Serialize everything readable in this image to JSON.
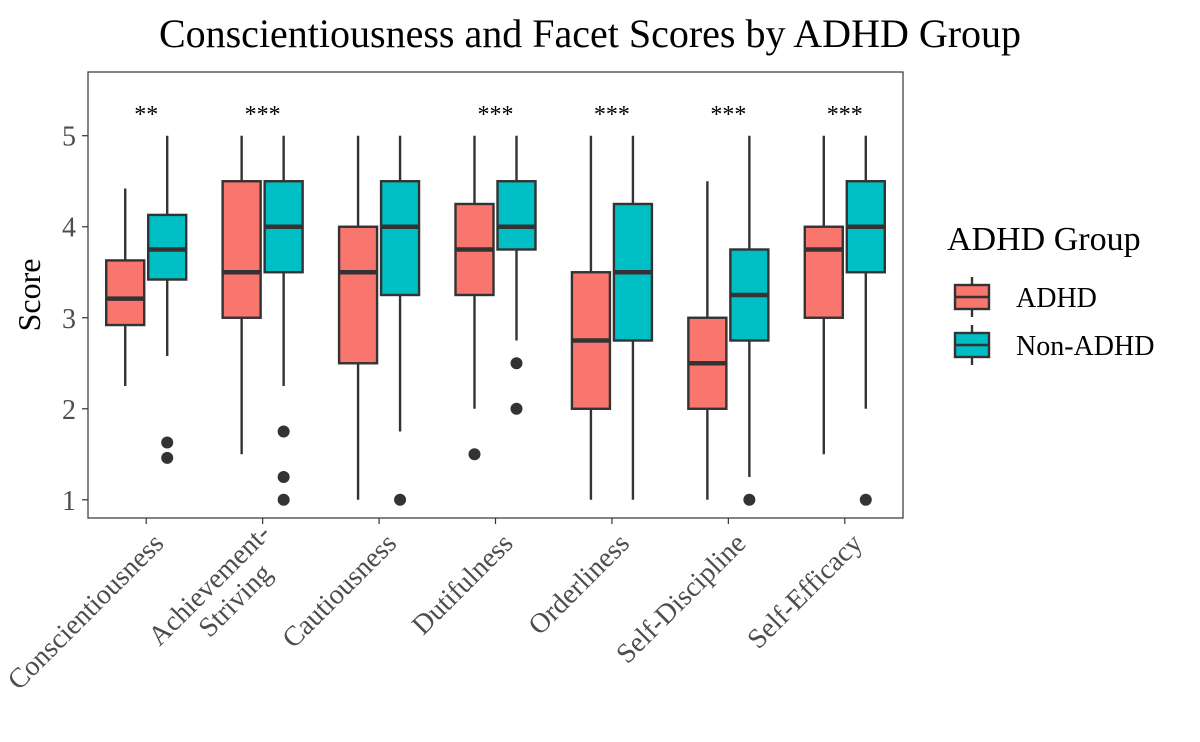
{
  "chart_data": {
    "type": "boxplot",
    "title": "Conscientiousness and Facet Scores by ADHD Group",
    "xlabel": "",
    "ylabel": "Score",
    "ylim": [
      0.8,
      5.7
    ],
    "yticks": [
      1,
      2,
      3,
      4,
      5
    ],
    "ytick_labels": [
      "1",
      "2",
      "3",
      "4",
      "5"
    ],
    "grid": false,
    "categories": [
      "Conscientiousness",
      "Achievement-\nStriving",
      "Cautiousness",
      "Dutifulness",
      "Orderliness",
      "Self-Discipline",
      "Self-Efficacy"
    ],
    "significance": [
      "**",
      "***",
      "",
      "***",
      "***",
      "***",
      "***"
    ],
    "legend": {
      "title": "ADHD Group",
      "position": "right",
      "entries": [
        "ADHD",
        "Non-ADHD"
      ]
    },
    "series": [
      {
        "name": "ADHD",
        "color": "#F8766D",
        "boxes": [
          {
            "whisker_low": 2.25,
            "q1": 2.92,
            "median": 3.21,
            "q3": 3.63,
            "whisker_high": 4.42,
            "outliers": []
          },
          {
            "whisker_low": 1.5,
            "q1": 3.0,
            "median": 3.5,
            "q3": 4.5,
            "whisker_high": 5.0,
            "outliers": []
          },
          {
            "whisker_low": 1.0,
            "q1": 2.5,
            "median": 3.5,
            "q3": 4.0,
            "whisker_high": 5.0,
            "outliers": []
          },
          {
            "whisker_low": 2.0,
            "q1": 3.25,
            "median": 3.75,
            "q3": 4.25,
            "whisker_high": 5.0,
            "outliers": [
              1.5
            ]
          },
          {
            "whisker_low": 1.0,
            "q1": 2.0,
            "median": 2.75,
            "q3": 3.5,
            "whisker_high": 5.0,
            "outliers": []
          },
          {
            "whisker_low": 1.0,
            "q1": 2.0,
            "median": 2.5,
            "q3": 3.0,
            "whisker_high": 4.5,
            "outliers": []
          },
          {
            "whisker_low": 1.5,
            "q1": 3.0,
            "median": 3.75,
            "q3": 4.0,
            "whisker_high": 5.0,
            "outliers": []
          }
        ]
      },
      {
        "name": "Non-ADHD",
        "color": "#00BFC4",
        "boxes": [
          {
            "whisker_low": 2.58,
            "q1": 3.42,
            "median": 3.75,
            "q3": 4.13,
            "whisker_high": 5.0,
            "outliers": [
              1.63,
              1.46
            ]
          },
          {
            "whisker_low": 2.25,
            "q1": 3.5,
            "median": 4.0,
            "q3": 4.5,
            "whisker_high": 5.0,
            "outliers": [
              1.75,
              1.25,
              1.0
            ]
          },
          {
            "whisker_low": 1.75,
            "q1": 3.25,
            "median": 4.0,
            "q3": 4.5,
            "whisker_high": 5.0,
            "outliers": [
              1.0
            ]
          },
          {
            "whisker_low": 2.75,
            "q1": 3.75,
            "median": 4.0,
            "q3": 4.5,
            "whisker_high": 5.0,
            "outliers": [
              2.5,
              2.0
            ]
          },
          {
            "whisker_low": 1.0,
            "q1": 2.75,
            "median": 3.5,
            "q3": 4.25,
            "whisker_high": 5.0,
            "outliers": []
          },
          {
            "whisker_low": 1.25,
            "q1": 2.75,
            "median": 3.25,
            "q3": 3.75,
            "whisker_high": 5.0,
            "outliers": [
              1.0
            ]
          },
          {
            "whisker_low": 2.0,
            "q1": 3.5,
            "median": 4.0,
            "q3": 4.5,
            "whisker_high": 5.0,
            "outliers": [
              1.0
            ]
          }
        ]
      }
    ]
  }
}
